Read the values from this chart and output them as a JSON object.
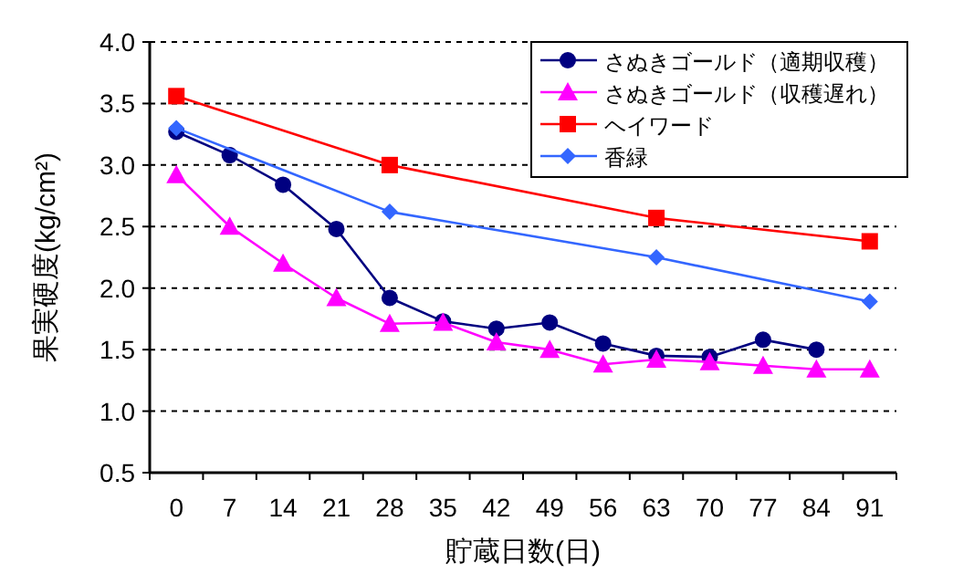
{
  "chart_data": {
    "type": "line",
    "xlabel": "貯蔵日数(日)",
    "ylabel": "果実硬度(kg/cm²)",
    "categories": [
      "0",
      "7",
      "14",
      "21",
      "28",
      "35",
      "42",
      "49",
      "56",
      "63",
      "70",
      "77",
      "84",
      "91"
    ],
    "ylim": [
      0.5,
      4.0
    ],
    "yticks": [
      {
        "value": 0.5,
        "label": "0.5"
      },
      {
        "value": 1.0,
        "label": "1.0"
      },
      {
        "value": 1.5,
        "label": "1.5"
      },
      {
        "value": 2.0,
        "label": "2.0"
      },
      {
        "value": 2.5,
        "label": "2.5"
      },
      {
        "value": 3.0,
        "label": "3.0"
      },
      {
        "value": 3.5,
        "label": "3.5"
      },
      {
        "value": 4.0,
        "label": "4.0"
      }
    ],
    "grid": "y",
    "legend": "top right",
    "line_style": "solid",
    "series": [
      {
        "name": "さぬきゴールド（適期収穫）",
        "color": "#000080",
        "marker": "circle",
        "values": [
          3.27,
          3.08,
          2.84,
          2.48,
          1.92,
          1.73,
          1.67,
          1.72,
          1.55,
          1.45,
          1.44,
          1.58,
          1.5,
          null
        ]
      },
      {
        "name": "さぬきゴールド（収穫遅れ）",
        "color": "#ff00ff",
        "marker": "triangle",
        "values": [
          2.92,
          2.5,
          2.2,
          1.92,
          1.71,
          1.72,
          1.56,
          1.5,
          1.38,
          1.42,
          1.4,
          1.37,
          1.34,
          1.34
        ]
      },
      {
        "name": "ヘイワード",
        "color": "#ff0000",
        "marker": "square",
        "values": [
          3.56,
          null,
          null,
          null,
          3.0,
          null,
          null,
          null,
          null,
          2.57,
          null,
          null,
          null,
          2.38
        ]
      },
      {
        "name": "香緑",
        "color": "#3366ff",
        "marker": "diamond",
        "values": [
          3.3,
          null,
          null,
          null,
          2.62,
          null,
          null,
          null,
          null,
          2.25,
          null,
          null,
          null,
          1.89
        ]
      }
    ]
  }
}
